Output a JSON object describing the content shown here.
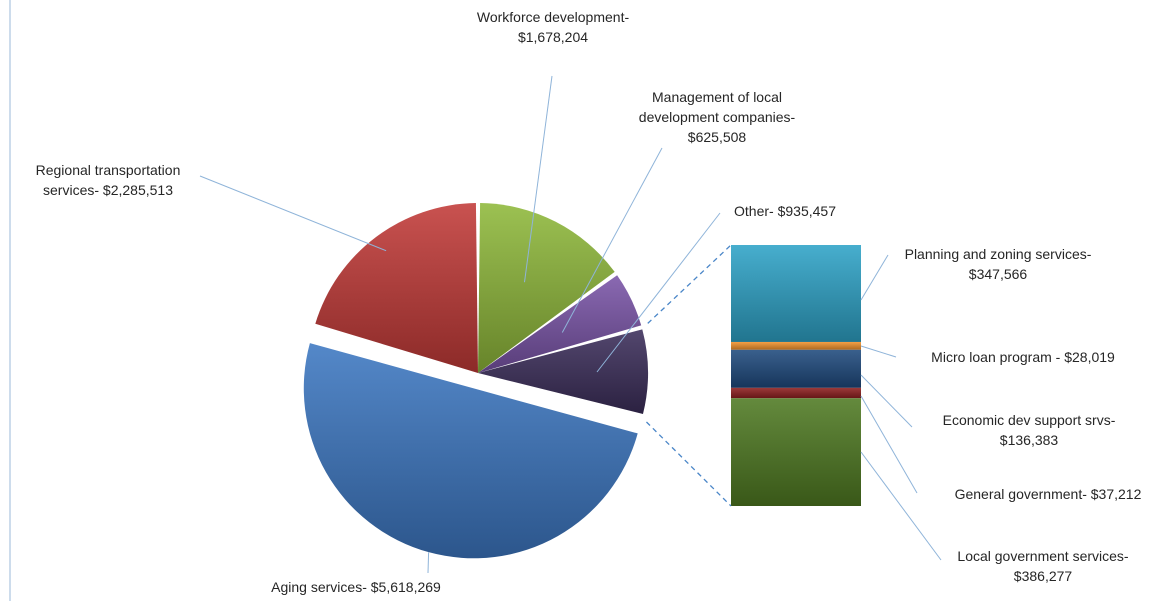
{
  "chart_data": {
    "type": "pie",
    "subtype": "bar-of-pie",
    "title": "",
    "slices": [
      {
        "name": "Workforce development",
        "value": 1678204,
        "label_lines": [
          "Workforce development-",
          "$1,678,204"
        ],
        "color": "#8fb83a"
      },
      {
        "name": "Management of local development companies",
        "value": 625508,
        "label_lines": [
          "Management of local",
          "development companies-",
          "$625,508"
        ],
        "color": "#7a55a8"
      },
      {
        "name": "Other",
        "value": 935457,
        "label_lines": [
          "Other- $935,457"
        ],
        "color": "#3c2e5a"
      },
      {
        "name": "Aging services",
        "value": 5618269,
        "label_lines": [
          "Aging services- $5,618,269"
        ],
        "color": "#3d78c2"
      },
      {
        "name": "Regional transportation services",
        "value": 2285513,
        "label_lines": [
          "Regional transportation",
          "services- $2,285,513"
        ],
        "color": "#c23a38"
      }
    ],
    "other_breakdown": [
      {
        "name": "Planning and zoning services",
        "value": 347566,
        "label_lines": [
          "Planning and zoning services-",
          "$347,566"
        ],
        "color": "#2ea3c7"
      },
      {
        "name": "Micro loan program",
        "value": 28019,
        "label_lines": [
          "Micro loan program - $28,019"
        ],
        "color": "#f2922e"
      },
      {
        "name": "Economic dev support srvs",
        "value": 136383,
        "label_lines": [
          "Economic dev support srvs-",
          "$136,383"
        ],
        "color": "#1f4a7e"
      },
      {
        "name": "General government",
        "value": 37212,
        "label_lines": [
          "General government- $37,212"
        ],
        "color": "#8e1f1f"
      },
      {
        "name": "Local government services",
        "value": 386277,
        "label_lines": [
          "Local government services-",
          "$386,277"
        ],
        "color": "#4f7a22"
      }
    ]
  }
}
